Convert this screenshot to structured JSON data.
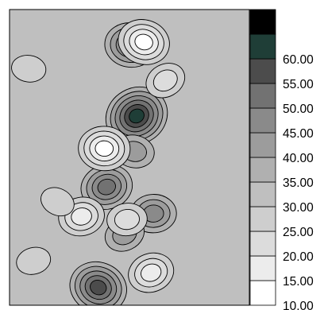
{
  "chart_data": {
    "type": "heatmap",
    "title": "",
    "xlabel": "",
    "ylabel": "",
    "colorbar": {
      "levels": [
        10,
        15,
        20,
        25,
        30,
        35,
        40,
        45,
        50,
        55,
        60,
        65
      ],
      "tick_labels": [
        "60.00",
        "55.00",
        "50.00",
        "45.00",
        "40.00",
        "35.00",
        "30.00",
        "25.00",
        "20.00",
        "15.00",
        "10.00"
      ],
      "colors": [
        "#ffffff",
        "#ececec",
        "#dcdcdc",
        "#cecece",
        "#bfbfbf",
        "#b0b0b0",
        "#9c9c9c",
        "#8a8a8a",
        "#727272",
        "#4c4c4c",
        "#1f3e37",
        "#000000"
      ],
      "placement": "right"
    },
    "background_level": 30,
    "features": [
      {
        "kind": "peak",
        "x": 0.53,
        "y": 0.36,
        "value": 60
      },
      {
        "kind": "peak",
        "x": 0.505,
        "y": 0.12,
        "value": 50
      },
      {
        "kind": "peak",
        "x": 0.405,
        "y": 0.6,
        "value": 50
      },
      {
        "kind": "peak",
        "x": 0.37,
        "y": 0.94,
        "value": 55
      },
      {
        "kind": "peak",
        "x": 0.6,
        "y": 0.69,
        "value": 45
      },
      {
        "kind": "peak",
        "x": 0.48,
        "y": 0.76,
        "value": 40
      },
      {
        "kind": "peak",
        "x": 0.52,
        "y": 0.48,
        "value": 40
      },
      {
        "kind": "trough",
        "x": 0.3,
        "y": 0.7,
        "value": 15
      },
      {
        "kind": "trough",
        "x": 0.2,
        "y": 0.65,
        "value": 25
      },
      {
        "kind": "trough",
        "x": 0.395,
        "y": 0.47,
        "value": 10
      },
      {
        "kind": "trough",
        "x": 0.59,
        "y": 0.89,
        "value": 15
      },
      {
        "kind": "trough",
        "x": 0.56,
        "y": 0.11,
        "value": 10
      },
      {
        "kind": "trough",
        "x": 0.49,
        "y": 0.71,
        "value": 20
      },
      {
        "kind": "trough",
        "x": 0.65,
        "y": 0.24,
        "value": 20
      },
      {
        "kind": "trough",
        "x": 0.08,
        "y": 0.2,
        "value": 25
      },
      {
        "kind": "trough",
        "x": 0.1,
        "y": 0.85,
        "value": 25
      }
    ]
  }
}
